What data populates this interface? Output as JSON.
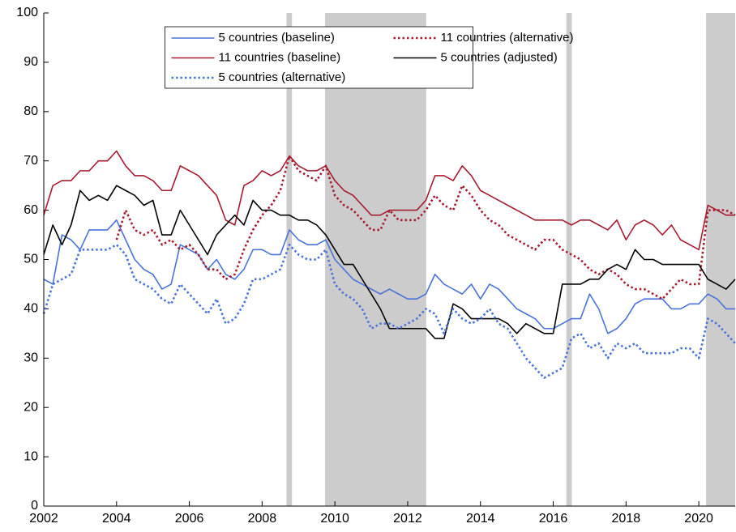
{
  "chart_data": {
    "type": "line",
    "x": [
      2002,
      2002.25,
      2002.5,
      2002.75,
      2003,
      2003.25,
      2003.5,
      2003.75,
      2004,
      2004.25,
      2004.5,
      2004.75,
      2005,
      2005.25,
      2005.5,
      2005.75,
      2006,
      2006.25,
      2006.5,
      2006.75,
      2007,
      2007.25,
      2007.5,
      2007.75,
      2008,
      2008.25,
      2008.5,
      2008.75,
      2009,
      2009.25,
      2009.5,
      2009.75,
      2010,
      2010.25,
      2010.5,
      2010.75,
      2011,
      2011.25,
      2011.5,
      2011.75,
      2012,
      2012.25,
      2012.5,
      2012.75,
      2013,
      2013.25,
      2013.5,
      2013.75,
      2014,
      2014.25,
      2014.5,
      2014.75,
      2015,
      2015.25,
      2015.5,
      2015.75,
      2016,
      2016.25,
      2016.5,
      2016.75,
      2017,
      2017.25,
      2017.5,
      2017.75,
      2018,
      2018.25,
      2018.5,
      2018.75,
      2019,
      2019.25,
      2019.5,
      2019.75,
      2020,
      2020.25,
      2020.5,
      2020.75,
      2021
    ],
    "series": [
      {
        "name": "5 countries (baseline)",
        "color": "#4a72d9",
        "dash": "solid",
        "values": [
          46,
          45,
          55,
          54,
          52,
          56,
          56,
          56,
          58,
          54,
          50,
          48,
          47,
          44,
          45,
          53,
          52,
          51,
          48,
          50,
          47,
          46,
          48,
          52,
          52,
          51,
          51,
          56,
          54,
          53,
          53,
          54,
          50,
          48,
          46,
          45,
          44,
          43,
          44,
          43,
          42,
          42,
          43,
          47,
          45,
          44,
          43,
          45,
          42,
          45,
          44,
          42,
          40,
          39,
          38,
          36,
          36,
          37,
          38,
          38,
          43,
          40,
          35,
          36,
          38,
          41,
          42,
          42,
          42,
          40,
          40,
          41,
          41,
          43,
          42,
          40,
          40
        ]
      },
      {
        "name": "11 countries (alternative)",
        "color": "#a51c30",
        "dash": "dotted",
        "values": [
          null,
          null,
          null,
          null,
          null,
          null,
          null,
          null,
          54,
          60,
          56,
          55,
          56,
          53,
          54,
          52,
          53,
          51,
          48,
          48,
          46,
          47,
          52,
          56,
          59,
          61,
          64,
          71,
          68,
          67,
          66,
          69,
          63,
          61,
          60,
          58,
          56,
          56,
          60,
          58,
          58,
          58,
          60,
          63,
          61,
          60,
          65,
          63,
          60,
          58,
          57,
          55,
          54,
          53,
          52,
          54,
          54,
          52,
          51,
          50,
          48,
          47,
          48,
          47,
          45,
          44,
          44,
          43,
          42,
          44,
          46,
          45,
          45,
          60,
          60,
          60,
          59
        ]
      },
      {
        "name": "11 countries (baseline)",
        "color": "#a51c30",
        "dash": "solid",
        "values": [
          59,
          65,
          66,
          66,
          68,
          68,
          70,
          70,
          72,
          69,
          67,
          67,
          66,
          64,
          64,
          69,
          68,
          67,
          65,
          63,
          58,
          57,
          65,
          66,
          68,
          67,
          68,
          71,
          69,
          68,
          68,
          69,
          66,
          64,
          63,
          61,
          59,
          59,
          60,
          60,
          60,
          60,
          62,
          67,
          67,
          66,
          69,
          67,
          64,
          63,
          62,
          61,
          60,
          59,
          58,
          58,
          58,
          58,
          57,
          58,
          58,
          57,
          56,
          58,
          54,
          57,
          58,
          57,
          55,
          57,
          54,
          53,
          52,
          61,
          60,
          59,
          59
        ]
      },
      {
        "name": "5 countries (adjusted)",
        "color": "#000000",
        "dash": "solid",
        "values": [
          51,
          57,
          53,
          57,
          64,
          62,
          63,
          62,
          65,
          64,
          63,
          61,
          62,
          55,
          55,
          60,
          57,
          54,
          51,
          55,
          57,
          59,
          57,
          62,
          60,
          60,
          59,
          59,
          58,
          58,
          57,
          55,
          52,
          49,
          49,
          46,
          43,
          40,
          36,
          36,
          36,
          36,
          36,
          34,
          34,
          41,
          40,
          38,
          38,
          38,
          38,
          37,
          35,
          37,
          36,
          35,
          35,
          45,
          45,
          45,
          46,
          46,
          48,
          49,
          48,
          52,
          50,
          50,
          49,
          49,
          49,
          49,
          49,
          46,
          45,
          44,
          46
        ]
      },
      {
        "name": "5 countries (alternative)",
        "color": "#4a72d9",
        "dash": "dotted",
        "values": [
          39,
          45,
          46,
          47,
          52,
          52,
          52,
          52,
          53,
          51,
          46,
          45,
          44,
          42,
          41,
          45,
          43,
          41,
          39,
          42,
          37,
          38,
          41,
          46,
          46,
          47,
          48,
          53,
          51,
          50,
          50,
          52,
          45,
          43,
          42,
          40,
          36,
          37,
          37,
          36,
          37,
          38,
          40,
          39,
          35,
          40,
          38,
          37,
          38,
          40,
          37,
          36,
          33,
          30,
          28,
          26,
          27,
          28,
          34,
          35,
          32,
          33,
          30,
          33,
          32,
          33,
          31,
          31,
          31,
          31,
          32,
          32,
          30,
          38,
          37,
          35,
          33
        ]
      }
    ],
    "shaded_regions": [
      [
        2008.67,
        2008.82
      ],
      [
        2009.73,
        2012.51
      ],
      [
        2016.36,
        2016.51
      ],
      [
        2020.2,
        2021
      ]
    ],
    "shade_color": "#cccccc",
    "xlim": [
      2002,
      2021
    ],
    "xticks": [
      2002,
      2004,
      2006,
      2008,
      2010,
      2012,
      2014,
      2016,
      2018,
      2020
    ],
    "ylim": [
      0,
      100
    ],
    "yticks": [
      0,
      10,
      20,
      30,
      40,
      50,
      60,
      70,
      80,
      90,
      100
    ],
    "legend": "upper center"
  }
}
